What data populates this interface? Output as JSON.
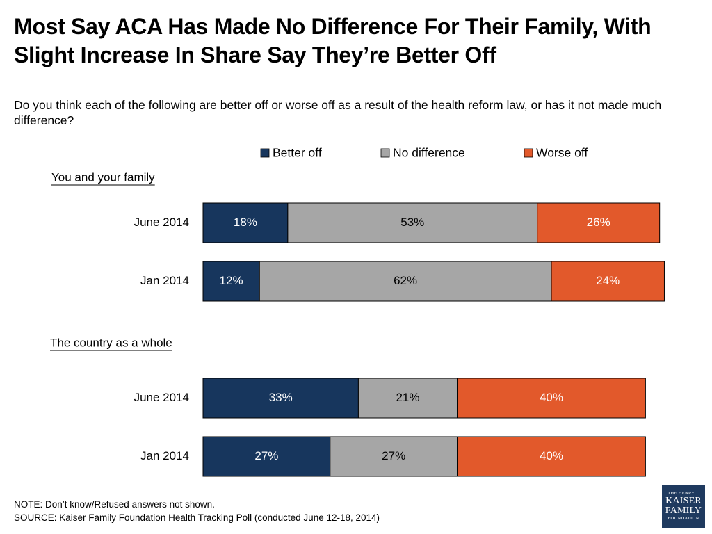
{
  "title": "Most Say ACA Has Made No Difference For Their Family, With Slight Increase In Share Say They’re Better Off",
  "subtitle": "Do you think each of the following are better off or worse off as a result of the health reform law, or has it not made much difference?",
  "notes": {
    "note": "NOTE: Don’t know/Refused answers not shown.",
    "source": "SOURCE: Kaiser Family Foundation Health Tracking Poll (conducted June 12-18, 2014)"
  },
  "logo": {
    "line1": "THE HENRY J.",
    "line2": "KAISER",
    "line3": "FAMILY",
    "line4": "FOUNDATION"
  },
  "chart_data": {
    "type": "bar",
    "orientation": "horizontal",
    "stacked": true,
    "value_format": "percent",
    "legend_position": "top",
    "grid": false,
    "xlim": [
      0,
      100
    ],
    "series": [
      {
        "name": "Better off",
        "color": "#17365d"
      },
      {
        "name": "No difference",
        "color": "#a6a6a6"
      },
      {
        "name": "Worse off",
        "color": "#e2592b"
      }
    ],
    "groups": [
      {
        "label": "You and your family",
        "rows": [
          {
            "category": "June 2014",
            "values": [
              18,
              53,
              26
            ]
          },
          {
            "category": "Jan 2014",
            "values": [
              12,
              62,
              24
            ]
          }
        ]
      },
      {
        "label": "The country as a whole",
        "rows": [
          {
            "category": "June 2014",
            "values": [
              33,
              21,
              40
            ]
          },
          {
            "category": "Jan 2014",
            "values": [
              27,
              27,
              40
            ]
          }
        ]
      }
    ]
  }
}
